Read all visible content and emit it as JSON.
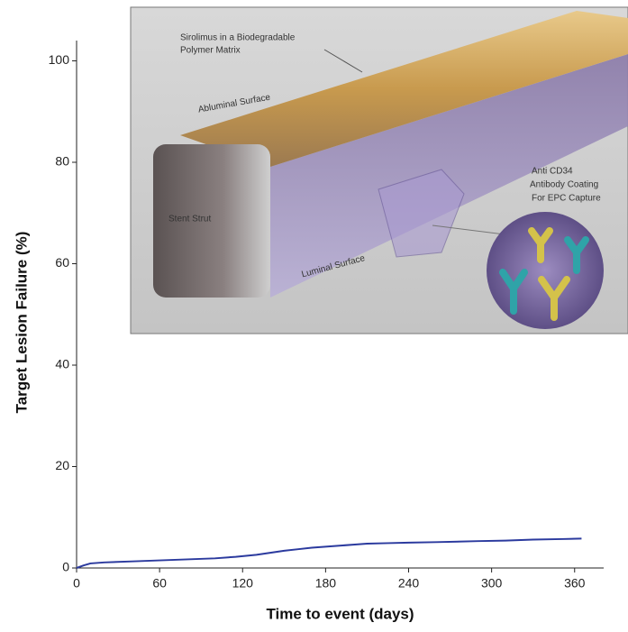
{
  "chart_data": {
    "type": "line",
    "x_label": "Time to event (days)",
    "y_label": "Target Lesion Failure (%)",
    "x": [
      0,
      5,
      10,
      20,
      40,
      60,
      80,
      100,
      115,
      130,
      140,
      150,
      160,
      170,
      180,
      190,
      200,
      210,
      225,
      240,
      260,
      290,
      310,
      330,
      350,
      365
    ],
    "values": [
      0,
      0.5,
      0.9,
      1.1,
      1.3,
      1.5,
      1.7,
      1.9,
      2.2,
      2.6,
      3.0,
      3.4,
      3.7,
      4.0,
      4.2,
      4.4,
      4.6,
      4.8,
      4.9,
      5.0,
      5.1,
      5.3,
      5.4,
      5.6,
      5.7,
      5.8
    ],
    "color": "#2b3a9e",
    "xlim": [
      0,
      381
    ],
    "ylim": [
      0,
      104
    ],
    "xticks": [
      0,
      60,
      120,
      180,
      240,
      300,
      360
    ],
    "yticks": [
      0,
      20,
      40,
      60,
      80,
      100
    ],
    "grid": false,
    "annotations": [
      "Sirolimus in a Biodegradable",
      "Polymer Matrix",
      "Abluminal Surface",
      "Stent Strut",
      "Luminal Surface",
      "Anti CD34",
      "Antibody Coating",
      "For EPC Capture"
    ]
  }
}
